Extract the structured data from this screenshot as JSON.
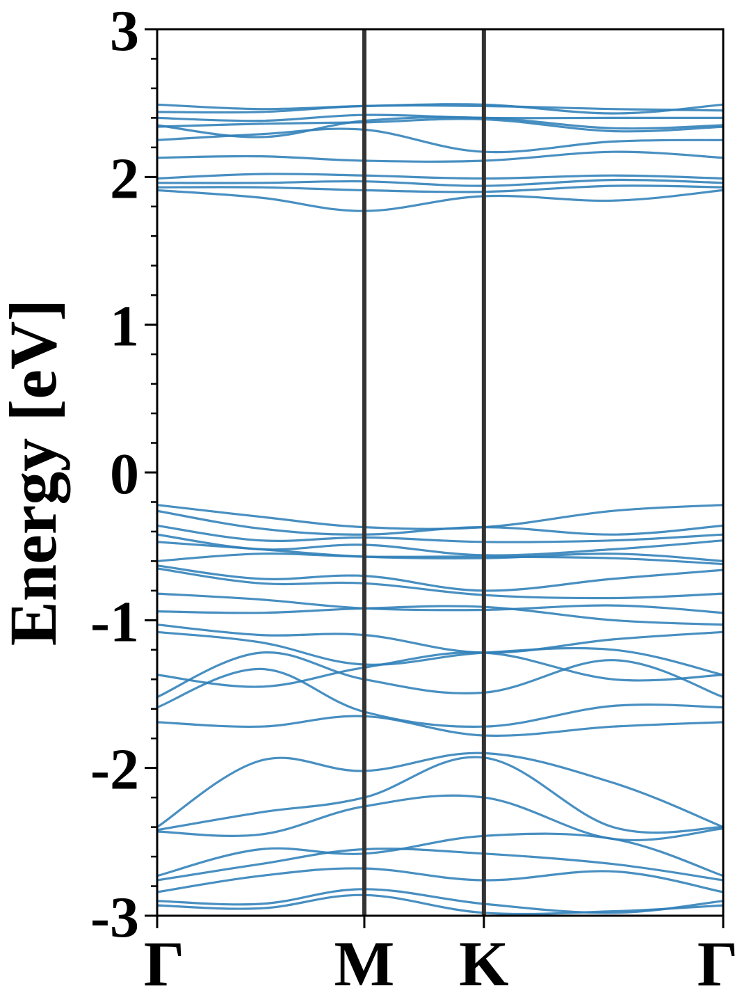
{
  "chart_data": {
    "type": "line",
    "ylabel": "Energy [eV]",
    "xlabel": "",
    "ylim": [
      -3,
      3
    ],
    "y_ticks": [
      "-3",
      "-2",
      "-1",
      "0",
      "1",
      "2",
      "3"
    ],
    "x_ticks": [
      {
        "label": "Γ",
        "pos": 0
      },
      {
        "label": "M",
        "pos": 1
      },
      {
        "label": "K",
        "pos": 1.577
      },
      {
        "label": "Γ",
        "pos": 2.732
      }
    ],
    "grid": false,
    "line_color": "#2f7fb8",
    "symmetry_line_color": "#333333",
    "bands": [
      {
        "x": [
          0,
          0.5,
          1,
          1.577,
          2.2,
          2.732
        ],
        "y": [
          2.49,
          2.46,
          2.48,
          2.49,
          2.43,
          2.49
        ]
      },
      {
        "x": [
          0,
          0.5,
          1,
          1.577,
          2.2,
          2.732
        ],
        "y": [
          2.44,
          2.44,
          2.48,
          2.48,
          2.46,
          2.45
        ]
      },
      {
        "x": [
          0,
          0.5,
          1,
          1.577,
          2.2,
          2.732
        ],
        "y": [
          2.4,
          2.38,
          2.42,
          2.4,
          2.4,
          2.4
        ]
      },
      {
        "x": [
          0,
          0.5,
          1,
          1.577,
          2.2,
          2.732
        ],
        "y": [
          2.35,
          2.27,
          2.38,
          2.4,
          2.33,
          2.35
        ]
      },
      {
        "x": [
          0,
          0.5,
          1,
          1.577,
          2.2,
          2.732
        ],
        "y": [
          2.34,
          2.36,
          2.37,
          2.39,
          2.31,
          2.34
        ]
      },
      {
        "x": [
          0,
          0.5,
          1,
          1.577,
          2.2,
          2.732
        ],
        "y": [
          2.25,
          2.29,
          2.32,
          2.17,
          2.24,
          2.25
        ]
      },
      {
        "x": [
          0,
          0.5,
          1,
          1.577,
          2.2,
          2.732
        ],
        "y": [
          2.13,
          2.14,
          2.11,
          2.11,
          2.17,
          2.13
        ]
      },
      {
        "x": [
          0,
          0.5,
          1,
          1.577,
          2.2,
          2.732
        ],
        "y": [
          1.99,
          2.02,
          2.01,
          1.99,
          2.01,
          1.99
        ]
      },
      {
        "x": [
          0,
          0.5,
          1,
          1.577,
          2.2,
          2.732
        ],
        "y": [
          1.96,
          1.96,
          1.97,
          1.94,
          1.98,
          1.96
        ]
      },
      {
        "x": [
          0,
          0.5,
          1,
          1.577,
          2.2,
          2.732
        ],
        "y": [
          1.93,
          1.93,
          1.91,
          1.9,
          1.94,
          1.93
        ]
      },
      {
        "x": [
          0,
          0.5,
          1,
          1.577,
          2.2,
          2.732
        ],
        "y": [
          1.91,
          1.86,
          1.77,
          1.87,
          1.84,
          1.91
        ]
      },
      {
        "x": [
          0,
          0.5,
          1,
          1.577,
          2.2,
          2.732
        ],
        "y": [
          -0.22,
          -0.3,
          -0.37,
          -0.37,
          -0.26,
          -0.22
        ]
      },
      {
        "x": [
          0,
          0.5,
          1,
          1.577,
          2.2,
          2.732
        ],
        "y": [
          -0.26,
          -0.38,
          -0.42,
          -0.37,
          -0.42,
          -0.36
        ]
      },
      {
        "x": [
          0,
          0.5,
          1,
          1.577,
          2.2,
          2.732
        ],
        "y": [
          -0.36,
          -0.46,
          -0.44,
          -0.47,
          -0.46,
          -0.42
        ]
      },
      {
        "x": [
          0,
          0.5,
          1,
          1.577,
          2.2,
          2.732
        ],
        "y": [
          -0.42,
          -0.52,
          -0.49,
          -0.56,
          -0.52,
          -0.46
        ]
      },
      {
        "x": [
          0,
          0.5,
          1,
          1.577,
          2.2,
          2.732
        ],
        "y": [
          -0.47,
          -0.52,
          -0.57,
          -0.58,
          -0.55,
          -0.6
        ]
      },
      {
        "x": [
          0,
          0.5,
          1,
          1.577,
          2.2,
          2.732
        ],
        "y": [
          -0.6,
          -0.55,
          -0.57,
          -0.57,
          -0.58,
          -0.62
        ]
      },
      {
        "x": [
          0,
          0.5,
          1,
          1.577,
          2.2,
          2.732
        ],
        "y": [
          -0.63,
          -0.72,
          -0.7,
          -0.8,
          -0.72,
          -0.66
        ]
      },
      {
        "x": [
          0,
          0.5,
          1,
          1.577,
          2.2,
          2.732
        ],
        "y": [
          -0.65,
          -0.75,
          -0.75,
          -0.83,
          -0.85,
          -0.82
        ]
      },
      {
        "x": [
          0,
          0.5,
          1,
          1.577,
          2.2,
          2.732
        ],
        "y": [
          -0.82,
          -0.86,
          -0.92,
          -0.93,
          -0.9,
          -0.95
        ]
      },
      {
        "x": [
          0,
          0.5,
          1,
          1.577,
          2.2,
          2.732
        ],
        "y": [
          -0.94,
          -0.95,
          -0.92,
          -0.91,
          -1.0,
          -1.03
        ]
      },
      {
        "x": [
          0,
          0.5,
          1,
          1.577,
          2.2,
          2.732
        ],
        "y": [
          -1.03,
          -1.1,
          -1.1,
          -1.22,
          -1.13,
          -1.08
        ]
      },
      {
        "x": [
          0,
          0.5,
          1,
          1.577,
          2.2,
          2.732
        ],
        "y": [
          -1.08,
          -1.15,
          -1.3,
          -1.22,
          -1.2,
          -1.37
        ]
      },
      {
        "x": [
          0,
          0.5,
          1,
          1.577,
          2.2,
          2.732
        ],
        "y": [
          -1.37,
          -1.45,
          -1.32,
          -1.22,
          -1.4,
          -1.37
        ]
      },
      {
        "x": [
          0,
          0.5,
          1,
          1.577,
          2.2,
          2.732
        ],
        "y": [
          -1.52,
          -1.22,
          -1.4,
          -1.49,
          -1.27,
          -1.52
        ]
      },
      {
        "x": [
          0,
          0.5,
          1,
          1.577,
          2.2,
          2.732
        ],
        "y": [
          -1.59,
          -1.33,
          -1.62,
          -1.72,
          -1.58,
          -1.59
        ]
      },
      {
        "x": [
          0,
          0.5,
          1,
          1.577,
          2.2,
          2.732
        ],
        "y": [
          -1.69,
          -1.72,
          -1.65,
          -1.78,
          -1.72,
          -1.69
        ]
      },
      {
        "x": [
          0,
          0.5,
          1,
          1.577,
          2.2,
          2.732
        ],
        "y": [
          -2.4,
          -1.95,
          -2.02,
          -1.9,
          -2.1,
          -2.4
        ]
      },
      {
        "x": [
          0,
          0.5,
          1,
          1.577,
          2.2,
          2.732
        ],
        "y": [
          -2.42,
          -2.3,
          -2.2,
          -1.93,
          -2.4,
          -2.4
        ]
      },
      {
        "x": [
          0,
          0.5,
          1,
          1.577,
          2.2,
          2.732
        ],
        "y": [
          -2.43,
          -2.45,
          -2.26,
          -2.2,
          -2.48,
          -2.41
        ]
      },
      {
        "x": [
          0,
          0.5,
          1,
          1.577,
          2.2,
          2.732
        ],
        "y": [
          -2.73,
          -2.55,
          -2.58,
          -2.46,
          -2.48,
          -2.73
        ]
      },
      {
        "x": [
          0,
          0.5,
          1,
          1.577,
          2.2,
          2.732
        ],
        "y": [
          -2.76,
          -2.65,
          -2.55,
          -2.58,
          -2.65,
          -2.76
        ]
      },
      {
        "x": [
          0,
          0.5,
          1,
          1.577,
          2.2,
          2.732
        ],
        "y": [
          -2.84,
          -2.73,
          -2.68,
          -2.76,
          -2.7,
          -2.84
        ]
      },
      {
        "x": [
          0,
          0.5,
          1,
          1.577,
          2.2,
          2.732
        ],
        "y": [
          -2.9,
          -2.92,
          -2.82,
          -2.92,
          -2.98,
          -2.9
        ]
      },
      {
        "x": [
          0,
          0.5,
          1,
          1.577,
          2.2,
          2.732
        ],
        "y": [
          -2.93,
          -2.95,
          -2.86,
          -2.98,
          -2.97,
          -2.93
        ]
      }
    ]
  }
}
